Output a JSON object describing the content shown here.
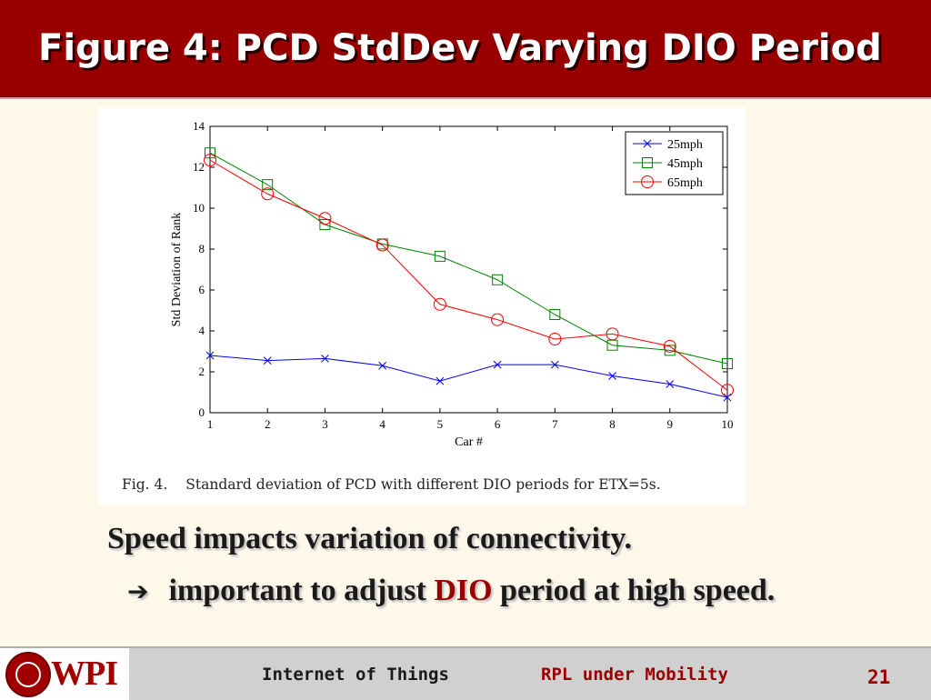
{
  "slide": {
    "title": "Figure 4: PCD StdDev Varying DIO Period",
    "caption_number": "Fig. 4.",
    "caption_text": "Standard deviation of PCD with different DIO periods for ETX=5s.",
    "bullet1": "Speed impacts variation of connectivity.",
    "bullet2_arrow": "➔",
    "bullet2_before": "important to adjust",
    "bullet2_highlight": "DIO",
    "bullet2_after": "period at high speed.",
    "highlight_color": "#990000"
  },
  "footer": {
    "logo_text": "WPI",
    "left": "Internet of Things",
    "center": "RPL under Mobility",
    "page": "21"
  },
  "chart_data": {
    "type": "line",
    "xlabel": "Car #",
    "ylabel": "Std Deviation of Rank",
    "xlim": [
      1,
      10
    ],
    "ylim": [
      0,
      14
    ],
    "xticks": [
      1,
      2,
      3,
      4,
      5,
      6,
      7,
      8,
      9,
      10
    ],
    "yticks": [
      0,
      2,
      4,
      6,
      8,
      10,
      12,
      14
    ],
    "grid": false,
    "legend_position": "top-right",
    "x": [
      1,
      2,
      3,
      4,
      5,
      6,
      7,
      8,
      9,
      10
    ],
    "series": [
      {
        "name": "25mph",
        "color": "#0000ff",
        "marker": "x",
        "values": [
          2.8,
          2.55,
          2.65,
          2.3,
          1.55,
          2.35,
          2.35,
          1.8,
          1.4,
          0.75
        ]
      },
      {
        "name": "45mph",
        "color": "#008000",
        "marker": "square",
        "values": [
          12.7,
          11.15,
          9.2,
          8.25,
          7.65,
          6.5,
          4.8,
          3.3,
          3.05,
          2.4
        ]
      },
      {
        "name": "65mph",
        "color": "#ff0000",
        "marker": "circle",
        "values": [
          12.35,
          10.7,
          9.5,
          8.2,
          5.3,
          4.55,
          3.6,
          3.85,
          3.25,
          1.1
        ]
      }
    ]
  }
}
